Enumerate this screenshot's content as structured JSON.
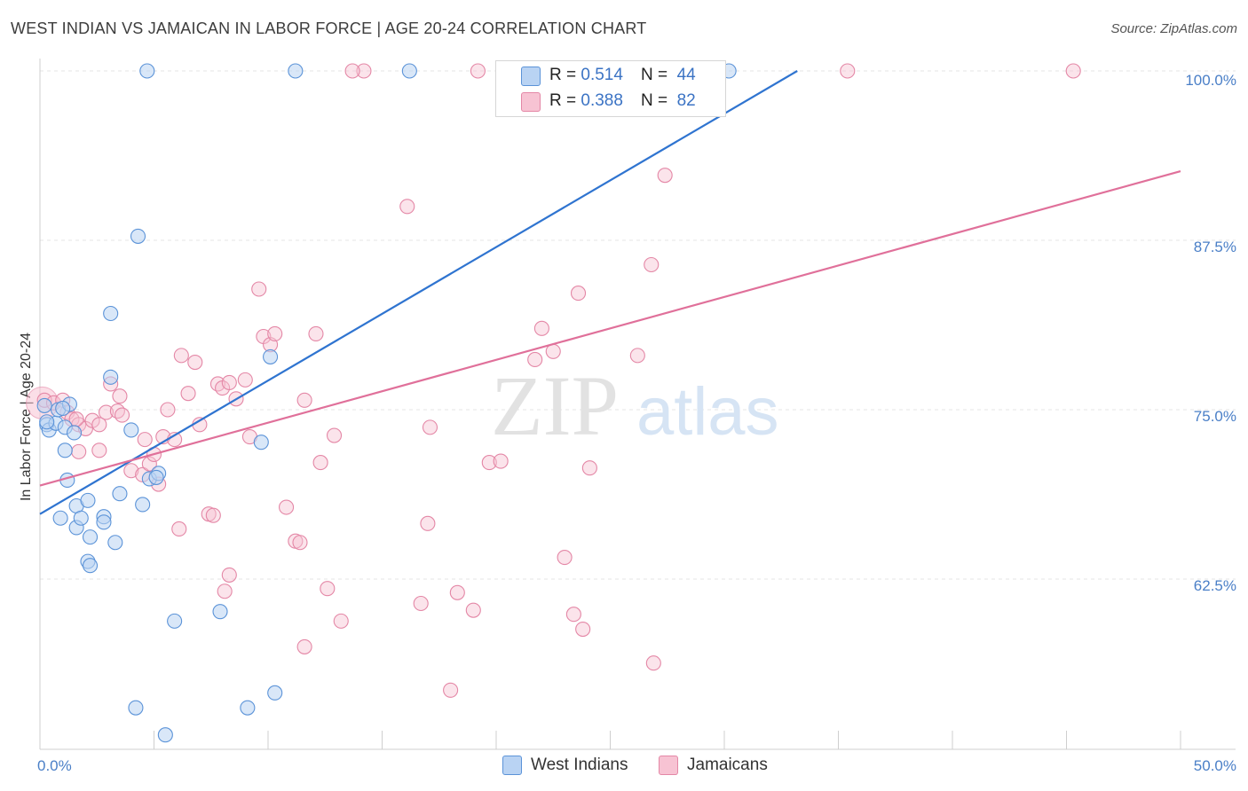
{
  "header": {
    "title": "WEST INDIAN VS JAMAICAN IN LABOR FORCE | AGE 20-24 CORRELATION CHART",
    "source": "Source: ZipAtlas.com"
  },
  "colors": {
    "blue_fill": "#b9d3f3",
    "blue_stroke": "#5b93d8",
    "blue_line": "#2f74d0",
    "pink_fill": "#f7c3d3",
    "pink_stroke": "#e487a6",
    "pink_line": "#e0709a",
    "tick": "#4a7fc7"
  },
  "legend": {
    "rows": [
      {
        "r_label": "R =",
        "r_value": "0.514",
        "n_label": "N =",
        "n_value": "44"
      },
      {
        "r_label": "R =",
        "r_value": "0.388",
        "n_label": "N =",
        "n_value": "82"
      }
    ]
  },
  "watermark": {
    "zip": "ZIP",
    "atlas": "atlas"
  },
  "chart_data": {
    "type": "scatter",
    "title": "WEST INDIAN VS JAMAICAN IN LABOR FORCE | AGE 20-24 CORRELATION CHART",
    "xlabel": "",
    "ylabel": "In Labor Force | Age 20-24",
    "xlim": [
      0,
      50
    ],
    "ylim": [
      50,
      100
    ],
    "x_tick_labels": [
      "0.0%",
      "50.0%"
    ],
    "y_ticks": [
      62.5,
      75.0,
      87.5,
      100.0
    ],
    "y_tick_labels": [
      "62.5%",
      "75.0%",
      "87.5%",
      "100.0%"
    ],
    "grid": true,
    "series": [
      {
        "name": "West Indians",
        "R": 0.514,
        "N": 44,
        "trend": {
          "x": [
            0,
            33.2
          ],
          "y": [
            67.3,
            100
          ]
        },
        "points": [
          [
            0.2,
            75.3
          ],
          [
            0.3,
            73.9
          ],
          [
            0.4,
            73.5
          ],
          [
            0.7,
            74.0
          ],
          [
            0.8,
            75.0
          ],
          [
            1.1,
            73.7
          ],
          [
            1.1,
            72.0
          ],
          [
            1.3,
            75.4
          ],
          [
            1.5,
            73.3
          ],
          [
            1.6,
            67.9
          ],
          [
            0.9,
            67.0
          ],
          [
            1.6,
            66.3
          ],
          [
            1.8,
            67.0
          ],
          [
            1.2,
            69.8
          ],
          [
            2.1,
            68.3
          ],
          [
            2.8,
            67.1
          ],
          [
            2.2,
            65.6
          ],
          [
            2.8,
            66.7
          ],
          [
            2.1,
            63.8
          ],
          [
            2.2,
            63.5
          ],
          [
            3.3,
            65.2
          ],
          [
            3.1,
            77.4
          ],
          [
            3.1,
            82.1
          ],
          [
            3.5,
            68.8
          ],
          [
            4.0,
            73.5
          ],
          [
            4.5,
            68.0
          ],
          [
            4.8,
            69.9
          ],
          [
            5.2,
            70.3
          ],
          [
            4.3,
            87.8
          ],
          [
            4.7,
            100.0
          ],
          [
            11.2,
            100.0
          ],
          [
            16.2,
            100.0
          ],
          [
            30.2,
            100.0
          ],
          [
            10.1,
            78.9
          ],
          [
            9.7,
            72.6
          ],
          [
            5.9,
            59.4
          ],
          [
            7.9,
            60.1
          ],
          [
            4.2,
            53.0
          ],
          [
            9.1,
            53.0
          ],
          [
            5.5,
            51.0
          ],
          [
            10.3,
            54.1
          ],
          [
            5.1,
            70.0
          ],
          [
            0.3,
            74.1
          ],
          [
            1.0,
            75.1
          ]
        ]
      },
      {
        "name": "Jamaicans",
        "R": 0.388,
        "N": 82,
        "trend": {
          "x": [
            0,
            50
          ],
          "y": [
            69.4,
            92.6
          ]
        },
        "points": [
          [
            0.2,
            75.7
          ],
          [
            0.6,
            75.5
          ],
          [
            1.0,
            75.7
          ],
          [
            1.2,
            74.8
          ],
          [
            1.4,
            74.3
          ],
          [
            1.7,
            73.9
          ],
          [
            2.0,
            73.6
          ],
          [
            2.3,
            74.2
          ],
          [
            2.6,
            72.0
          ],
          [
            1.7,
            71.9
          ],
          [
            2.9,
            74.8
          ],
          [
            3.4,
            74.9
          ],
          [
            3.6,
            74.6
          ],
          [
            3.1,
            76.9
          ],
          [
            3.5,
            76.0
          ],
          [
            4.0,
            70.5
          ],
          [
            4.5,
            70.2
          ],
          [
            4.8,
            71.0
          ],
          [
            5.0,
            71.7
          ],
          [
            5.2,
            69.5
          ],
          [
            5.4,
            73.0
          ],
          [
            5.6,
            75.0
          ],
          [
            5.9,
            72.8
          ],
          [
            6.2,
            79.0
          ],
          [
            6.5,
            76.2
          ],
          [
            6.8,
            78.5
          ],
          [
            7.0,
            73.9
          ],
          [
            7.4,
            67.3
          ],
          [
            7.6,
            67.2
          ],
          [
            7.8,
            76.9
          ],
          [
            8.0,
            76.6
          ],
          [
            8.3,
            77.0
          ],
          [
            8.6,
            75.8
          ],
          [
            9.0,
            77.2
          ],
          [
            9.2,
            73.0
          ],
          [
            9.6,
            83.9
          ],
          [
            9.8,
            80.4
          ],
          [
            10.1,
            79.8
          ],
          [
            10.3,
            80.6
          ],
          [
            10.8,
            67.8
          ],
          [
            11.2,
            65.3
          ],
          [
            11.4,
            65.2
          ],
          [
            11.6,
            75.7
          ],
          [
            12.1,
            80.6
          ],
          [
            12.3,
            71.1
          ],
          [
            12.6,
            61.8
          ],
          [
            12.9,
            73.1
          ],
          [
            13.2,
            59.4
          ],
          [
            8.3,
            62.8
          ],
          [
            8.1,
            61.6
          ],
          [
            6.1,
            66.2
          ],
          [
            11.6,
            57.5
          ],
          [
            14.2,
            100.0
          ],
          [
            13.7,
            100.0
          ],
          [
            19.2,
            100.0
          ],
          [
            28.1,
            100.0
          ],
          [
            35.4,
            100.0
          ],
          [
            45.3,
            100.0
          ],
          [
            16.1,
            90.0
          ],
          [
            27.4,
            92.3
          ],
          [
            23.6,
            83.6
          ],
          [
            22.0,
            81.0
          ],
          [
            22.5,
            79.3
          ],
          [
            21.7,
            78.7
          ],
          [
            26.2,
            79.0
          ],
          [
            23.0,
            64.1
          ],
          [
            17.1,
            73.7
          ],
          [
            17.0,
            66.6
          ],
          [
            16.7,
            60.7
          ],
          [
            18.0,
            54.3
          ],
          [
            18.3,
            61.5
          ],
          [
            19.0,
            60.2
          ],
          [
            19.7,
            71.1
          ],
          [
            20.2,
            71.2
          ],
          [
            23.4,
            59.9
          ],
          [
            23.8,
            58.8
          ],
          [
            24.1,
            70.7
          ],
          [
            26.9,
            56.3
          ],
          [
            26.8,
            85.7
          ],
          [
            1.6,
            74.3
          ],
          [
            4.6,
            72.8
          ],
          [
            2.6,
            73.9
          ]
        ]
      }
    ]
  }
}
